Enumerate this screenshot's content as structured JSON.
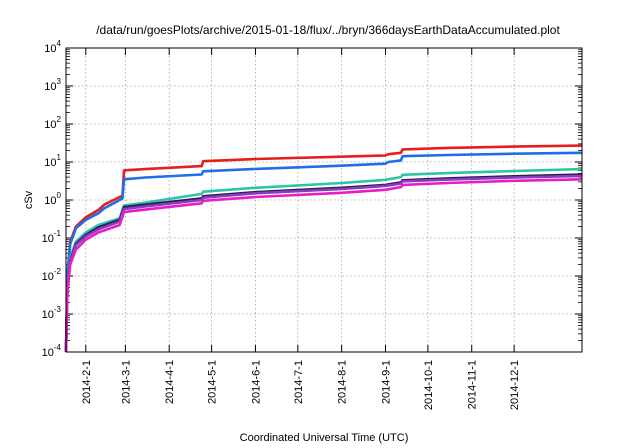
{
  "chart_data": {
    "type": "line",
    "title": "/data/run/goesPlots/archive/2015-01-18/flux/../bryn/366daysEarthDataAccumulated.plot",
    "xlabel": "Coordinated Universal Time (UTC)",
    "ylabel": "cSv",
    "yscale": "log",
    "ylim": [
      0.0001,
      10000
    ],
    "xlim": [
      "2014-01-18",
      "2015-01-18"
    ],
    "grid": true,
    "legend": "none",
    "y_ticks": [
      {
        "base": "10",
        "exp": "-4"
      },
      {
        "base": "10",
        "exp": "-3"
      },
      {
        "base": "10",
        "exp": "-2"
      },
      {
        "base": "10",
        "exp": "-1"
      },
      {
        "base": "10",
        "exp": "0"
      },
      {
        "base": "10",
        "exp": "1"
      },
      {
        "base": "10",
        "exp": "2"
      },
      {
        "base": "10",
        "exp": "3"
      },
      {
        "base": "10",
        "exp": "4"
      }
    ],
    "x_ticks": [
      {
        "label": "2014-2-1",
        "date": "2014-02-01"
      },
      {
        "label": "2014-3-1",
        "date": "2014-03-01"
      },
      {
        "label": "2014-4-1",
        "date": "2014-04-01"
      },
      {
        "label": "2014-5-1",
        "date": "2014-05-01"
      },
      {
        "label": "2014-6-1",
        "date": "2014-06-01"
      },
      {
        "label": "2014-7-1",
        "date": "2014-07-01"
      },
      {
        "label": "2014-8-1",
        "date": "2014-08-01"
      },
      {
        "label": "2014-9-1",
        "date": "2014-09-01"
      },
      {
        "label": "2014-10-1",
        "date": "2014-10-01"
      },
      {
        "label": "2014-11-1",
        "date": "2014-11-01"
      },
      {
        "label": "2014-12-1",
        "date": "2014-12-01"
      }
    ],
    "series": [
      {
        "color": "#e51e1e",
        "x": [
          "2014-01-18",
          "2014-01-19",
          "2014-01-21",
          "2014-01-25",
          "2014-02-01",
          "2014-02-10",
          "2014-02-14",
          "2014-02-25",
          "2014-02-27",
          "2014-02-28",
          "2014-03-15",
          "2014-04-24",
          "2014-04-25",
          "2014-06-01",
          "2014-08-01",
          "2014-09-01",
          "2014-09-03",
          "2014-09-12",
          "2014-09-13",
          "2014-10-15",
          "2014-12-01",
          "2015-01-18"
        ],
        "y": [
          0.0001,
          0.01,
          0.08,
          0.2,
          0.35,
          0.55,
          0.75,
          1.2,
          1.3,
          6.0,
          6.5,
          7.8,
          10.5,
          12.0,
          13.8,
          14.8,
          16.0,
          17.5,
          21.5,
          23.5,
          25.5,
          27
        ]
      },
      {
        "color": "#1e6fe5",
        "x": [
          "2014-01-18",
          "2014-01-19",
          "2014-01-21",
          "2014-01-25",
          "2014-02-01",
          "2014-02-10",
          "2014-02-14",
          "2014-02-25",
          "2014-02-27",
          "2014-02-28",
          "2014-03-15",
          "2014-04-24",
          "2014-04-25",
          "2014-06-01",
          "2014-08-01",
          "2014-09-01",
          "2014-09-03",
          "2014-09-12",
          "2014-09-13",
          "2014-10-15",
          "2014-12-01",
          "2015-01-18"
        ],
        "y": [
          0.0001,
          0.01,
          0.07,
          0.18,
          0.3,
          0.45,
          0.6,
          1.0,
          1.1,
          3.5,
          3.9,
          4.7,
          5.7,
          6.6,
          8.0,
          9.0,
          10.0,
          11.0,
          14.2,
          15.3,
          16.5,
          17.5
        ]
      },
      {
        "color": "#2ec4a6",
        "x": [
          "2014-01-18",
          "2014-01-19",
          "2014-01-21",
          "2014-01-25",
          "2014-02-01",
          "2014-02-10",
          "2014-02-25",
          "2014-02-28",
          "2014-03-15",
          "2014-04-24",
          "2014-04-25",
          "2014-06-01",
          "2014-08-01",
          "2014-09-01",
          "2014-09-12",
          "2014-09-13",
          "2014-10-15",
          "2014-12-01",
          "2015-01-18"
        ],
        "y": [
          0.0001,
          0.006,
          0.03,
          0.08,
          0.14,
          0.22,
          0.33,
          0.72,
          0.85,
          1.45,
          1.65,
          2.1,
          2.8,
          3.4,
          4.0,
          4.6,
          5.1,
          5.8,
          6.5
        ]
      },
      {
        "color": "#2b1b55",
        "x": [
          "2014-01-18",
          "2014-01-19",
          "2014-01-21",
          "2014-01-25",
          "2014-02-01",
          "2014-02-10",
          "2014-02-25",
          "2014-02-28",
          "2014-03-15",
          "2014-04-24",
          "2014-04-25",
          "2014-06-01",
          "2014-08-01",
          "2014-09-01",
          "2014-09-12",
          "2014-09-13",
          "2014-10-15",
          "2014-12-01",
          "2015-01-18"
        ],
        "y": [
          0.0001,
          0.005,
          0.025,
          0.07,
          0.12,
          0.19,
          0.3,
          0.65,
          0.75,
          1.1,
          1.25,
          1.6,
          2.1,
          2.5,
          2.9,
          3.3,
          3.7,
          4.2,
          4.7
        ]
      },
      {
        "color": "#8a3bbf",
        "x": [
          "2014-01-18",
          "2014-01-19",
          "2014-01-21",
          "2014-01-25",
          "2014-02-01",
          "2014-02-10",
          "2014-02-25",
          "2014-02-28",
          "2014-03-15",
          "2014-04-24",
          "2014-04-25",
          "2014-06-01",
          "2014-08-01",
          "2014-09-01",
          "2014-09-12",
          "2014-09-13",
          "2014-10-15",
          "2014-12-01",
          "2015-01-18"
        ],
        "y": [
          0.0001,
          0.005,
          0.023,
          0.065,
          0.11,
          0.17,
          0.27,
          0.58,
          0.68,
          1.0,
          1.15,
          1.5,
          1.95,
          2.35,
          2.7,
          3.1,
          3.45,
          3.9,
          4.3
        ]
      },
      {
        "color": "#e51ec8",
        "x": [
          "2014-01-18",
          "2014-01-19",
          "2014-01-21",
          "2014-01-25",
          "2014-02-01",
          "2014-02-10",
          "2014-02-25",
          "2014-02-28",
          "2014-03-15",
          "2014-04-24",
          "2014-04-25",
          "2014-06-01",
          "2014-08-01",
          "2014-09-01",
          "2014-09-12",
          "2014-09-13",
          "2014-10-15",
          "2014-12-01",
          "2015-01-18"
        ],
        "y": [
          0.0001,
          0.004,
          0.02,
          0.05,
          0.09,
          0.14,
          0.22,
          0.48,
          0.56,
          0.82,
          0.95,
          1.2,
          1.55,
          1.85,
          2.2,
          2.5,
          2.8,
          3.2,
          3.5
        ]
      }
    ]
  }
}
